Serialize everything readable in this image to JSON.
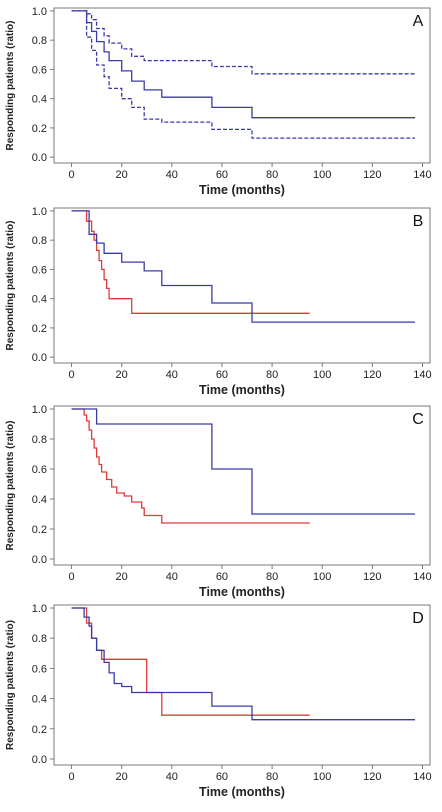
{
  "colors": {
    "blue": "#3b3ba8",
    "red": "#e03a3a",
    "axis": "#7a7a7a",
    "text": "#222222"
  },
  "chart_data": [
    {
      "type": "line",
      "panel_label": "A",
      "xlabel": "Time (months)",
      "ylabel": "Responding patients (ratio)",
      "xlim": [
        0,
        140
      ],
      "ylim": [
        0,
        1
      ],
      "xticks": [
        0,
        20,
        40,
        60,
        80,
        100,
        120,
        140
      ],
      "yticks": [
        0.0,
        0.2,
        0.4,
        0.6,
        0.8,
        1.0
      ],
      "xtick_labels": [
        "0",
        "20",
        "40",
        "60",
        "80",
        "100",
        "120",
        "140"
      ],
      "ytick_labels": [
        "0.0",
        "0.2",
        "0.4",
        "0.6",
        "0.8",
        "1.0"
      ],
      "grid": false,
      "step": true,
      "series": [
        {
          "color": "blue",
          "dash": false,
          "points": [
            [
              0,
              1.0
            ],
            [
              6,
              1.0
            ],
            [
              6,
              0.92
            ],
            [
              8,
              0.92
            ],
            [
              8,
              0.86
            ],
            [
              10,
              0.86
            ],
            [
              10,
              0.79
            ],
            [
              13,
              0.79
            ],
            [
              13,
              0.72
            ],
            [
              15,
              0.72
            ],
            [
              15,
              0.66
            ],
            [
              20,
              0.66
            ],
            [
              20,
              0.59
            ],
            [
              24,
              0.59
            ],
            [
              24,
              0.52
            ],
            [
              29,
              0.52
            ],
            [
              29,
              0.46
            ],
            [
              36,
              0.46
            ],
            [
              36,
              0.41
            ],
            [
              56,
              0.41
            ],
            [
              56,
              0.34
            ],
            [
              72,
              0.34
            ],
            [
              72,
              0.27
            ],
            [
              137,
              0.27
            ]
          ]
        },
        {
          "color": "blue",
          "dash": true,
          "points": [
            [
              0,
              1.0
            ],
            [
              6,
              1.0
            ],
            [
              6,
              0.98
            ],
            [
              8,
              0.98
            ],
            [
              8,
              0.94
            ],
            [
              10,
              0.94
            ],
            [
              10,
              0.88
            ],
            [
              13,
              0.88
            ],
            [
              13,
              0.83
            ],
            [
              15,
              0.83
            ],
            [
              15,
              0.78
            ],
            [
              20,
              0.78
            ],
            [
              20,
              0.74
            ],
            [
              24,
              0.74
            ],
            [
              24,
              0.69
            ],
            [
              29,
              0.69
            ],
            [
              29,
              0.66
            ],
            [
              56,
              0.66
            ],
            [
              56,
              0.62
            ],
            [
              72,
              0.62
            ],
            [
              72,
              0.57
            ],
            [
              137,
              0.57
            ]
          ]
        },
        {
          "color": "blue",
          "dash": true,
          "points": [
            [
              0,
              1.0
            ],
            [
              6,
              1.0
            ],
            [
              6,
              0.82
            ],
            [
              8,
              0.82
            ],
            [
              8,
              0.73
            ],
            [
              10,
              0.73
            ],
            [
              10,
              0.63
            ],
            [
              13,
              0.63
            ],
            [
              13,
              0.55
            ],
            [
              15,
              0.55
            ],
            [
              15,
              0.47
            ],
            [
              20,
              0.47
            ],
            [
              20,
              0.4
            ],
            [
              24,
              0.4
            ],
            [
              24,
              0.34
            ],
            [
              29,
              0.34
            ],
            [
              29,
              0.26
            ],
            [
              36,
              0.26
            ],
            [
              36,
              0.24
            ],
            [
              56,
              0.24
            ],
            [
              56,
              0.19
            ],
            [
              72,
              0.19
            ],
            [
              72,
              0.13
            ],
            [
              137,
              0.13
            ]
          ]
        }
      ]
    },
    {
      "type": "line",
      "panel_label": "B",
      "xlabel": "Time (months)",
      "ylabel": "Responding patients (ratio)",
      "xlim": [
        0,
        140
      ],
      "ylim": [
        0,
        1
      ],
      "xticks": [
        0,
        20,
        40,
        60,
        80,
        100,
        120,
        140
      ],
      "yticks": [
        0.0,
        0.2,
        0.4,
        0.6,
        0.8,
        1.0
      ],
      "xtick_labels": [
        "0",
        "20",
        "40",
        "60",
        "80",
        "100",
        "120",
        "140"
      ],
      "ytick_labels": [
        "0.0",
        "0.2",
        "0.4",
        "0.6",
        "0.8",
        "1.0"
      ],
      "grid": false,
      "step": true,
      "series": [
        {
          "color": "red",
          "dash": false,
          "points": [
            [
              0,
              1.0
            ],
            [
              6,
              1.0
            ],
            [
              6,
              0.93
            ],
            [
              8,
              0.93
            ],
            [
              8,
              0.86
            ],
            [
              9,
              0.86
            ],
            [
              9,
              0.8
            ],
            [
              10,
              0.8
            ],
            [
              10,
              0.73
            ],
            [
              11,
              0.73
            ],
            [
              11,
              0.66
            ],
            [
              12,
              0.66
            ],
            [
              12,
              0.6
            ],
            [
              13,
              0.6
            ],
            [
              13,
              0.53
            ],
            [
              14,
              0.53
            ],
            [
              14,
              0.47
            ],
            [
              15,
              0.47
            ],
            [
              15,
              0.4
            ],
            [
              20,
              0.4
            ],
            [
              20,
              0.4
            ],
            [
              24,
              0.4
            ],
            [
              24,
              0.3
            ],
            [
              95,
              0.3
            ]
          ]
        },
        {
          "color": "blue",
          "dash": false,
          "points": [
            [
              0,
              1.0
            ],
            [
              7,
              1.0
            ],
            [
              7,
              0.84
            ],
            [
              10,
              0.84
            ],
            [
              10,
              0.78
            ],
            [
              13,
              0.78
            ],
            [
              13,
              0.71
            ],
            [
              20,
              0.71
            ],
            [
              20,
              0.65
            ],
            [
              29,
              0.65
            ],
            [
              29,
              0.59
            ],
            [
              36,
              0.59
            ],
            [
              36,
              0.49
            ],
            [
              56,
              0.49
            ],
            [
              56,
              0.37
            ],
            [
              72,
              0.37
            ],
            [
              72,
              0.24
            ],
            [
              137,
              0.24
            ]
          ]
        }
      ]
    },
    {
      "type": "line",
      "panel_label": "C",
      "xlabel": "Time (months)",
      "ylabel": "Responding patients (ratio)",
      "xlim": [
        0,
        140
      ],
      "ylim": [
        0,
        1
      ],
      "xticks": [
        0,
        20,
        40,
        60,
        80,
        100,
        120,
        140
      ],
      "yticks": [
        0.0,
        0.2,
        0.4,
        0.6,
        0.8,
        1.0
      ],
      "xtick_labels": [
        "0",
        "20",
        "40",
        "60",
        "80",
        "100",
        "120",
        "140"
      ],
      "ytick_labels": [
        "0.0",
        "0.2",
        "0.4",
        "0.6",
        "0.8",
        "1.0"
      ],
      "grid": false,
      "step": true,
      "series": [
        {
          "color": "red",
          "dash": false,
          "points": [
            [
              0,
              1.0
            ],
            [
              5,
              1.0
            ],
            [
              5,
              0.96
            ],
            [
              6,
              0.96
            ],
            [
              6,
              0.92
            ],
            [
              7,
              0.92
            ],
            [
              7,
              0.86
            ],
            [
              8,
              0.86
            ],
            [
              8,
              0.8
            ],
            [
              9,
              0.8
            ],
            [
              9,
              0.74
            ],
            [
              10,
              0.74
            ],
            [
              10,
              0.68
            ],
            [
              11,
              0.68
            ],
            [
              11,
              0.63
            ],
            [
              12,
              0.63
            ],
            [
              12,
              0.58
            ],
            [
              14,
              0.58
            ],
            [
              14,
              0.53
            ],
            [
              16,
              0.53
            ],
            [
              16,
              0.48
            ],
            [
              18,
              0.48
            ],
            [
              18,
              0.44
            ],
            [
              21,
              0.44
            ],
            [
              21,
              0.42
            ],
            [
              24,
              0.42
            ],
            [
              24,
              0.38
            ],
            [
              28,
              0.38
            ],
            [
              28,
              0.34
            ],
            [
              29,
              0.34
            ],
            [
              29,
              0.29
            ],
            [
              36,
              0.29
            ],
            [
              36,
              0.24
            ],
            [
              95,
              0.24
            ]
          ]
        },
        {
          "color": "blue",
          "dash": false,
          "points": [
            [
              0,
              1.0
            ],
            [
              10,
              1.0
            ],
            [
              10,
              0.9
            ],
            [
              56,
              0.9
            ],
            [
              56,
              0.6
            ],
            [
              72,
              0.6
            ],
            [
              72,
              0.3
            ],
            [
              137,
              0.3
            ]
          ]
        }
      ]
    },
    {
      "type": "line",
      "panel_label": "D",
      "xlabel": "Time (months)",
      "ylabel": "Responding patients (ratio)",
      "xlim": [
        0,
        140
      ],
      "ylim": [
        0,
        1
      ],
      "xticks": [
        0,
        20,
        40,
        60,
        80,
        100,
        120,
        140
      ],
      "yticks": [
        0.0,
        0.2,
        0.4,
        0.6,
        0.8,
        1.0
      ],
      "xtick_labels": [
        "0",
        "20",
        "40",
        "60",
        "80",
        "100",
        "120",
        "140"
      ],
      "ytick_labels": [
        "0.0",
        "0.2",
        "0.4",
        "0.6",
        "0.8",
        "1.0"
      ],
      "grid": false,
      "step": true,
      "series": [
        {
          "color": "red",
          "dash": false,
          "points": [
            [
              0,
              1.0
            ],
            [
              6,
              1.0
            ],
            [
              6,
              0.9
            ],
            [
              8,
              0.9
            ],
            [
              8,
              0.8
            ],
            [
              10,
              0.8
            ],
            [
              10,
              0.72
            ],
            [
              12,
              0.72
            ],
            [
              12,
              0.66
            ],
            [
              20,
              0.66
            ],
            [
              20,
              0.66
            ],
            [
              30,
              0.66
            ],
            [
              30,
              0.44
            ],
            [
              36,
              0.44
            ],
            [
              36,
              0.29
            ],
            [
              95,
              0.29
            ]
          ]
        },
        {
          "color": "blue",
          "dash": false,
          "points": [
            [
              0,
              1.0
            ],
            [
              5,
              1.0
            ],
            [
              5,
              0.94
            ],
            [
              7,
              0.94
            ],
            [
              7,
              0.88
            ],
            [
              8,
              0.88
            ],
            [
              8,
              0.8
            ],
            [
              10,
              0.8
            ],
            [
              10,
              0.72
            ],
            [
              13,
              0.72
            ],
            [
              13,
              0.64
            ],
            [
              15,
              0.64
            ],
            [
              15,
              0.57
            ],
            [
              17,
              0.57
            ],
            [
              17,
              0.5
            ],
            [
              20,
              0.5
            ],
            [
              20,
              0.48
            ],
            [
              24,
              0.48
            ],
            [
              24,
              0.44
            ],
            [
              56,
              0.44
            ],
            [
              56,
              0.35
            ],
            [
              72,
              0.35
            ],
            [
              72,
              0.26
            ],
            [
              137,
              0.26
            ]
          ]
        }
      ]
    }
  ]
}
